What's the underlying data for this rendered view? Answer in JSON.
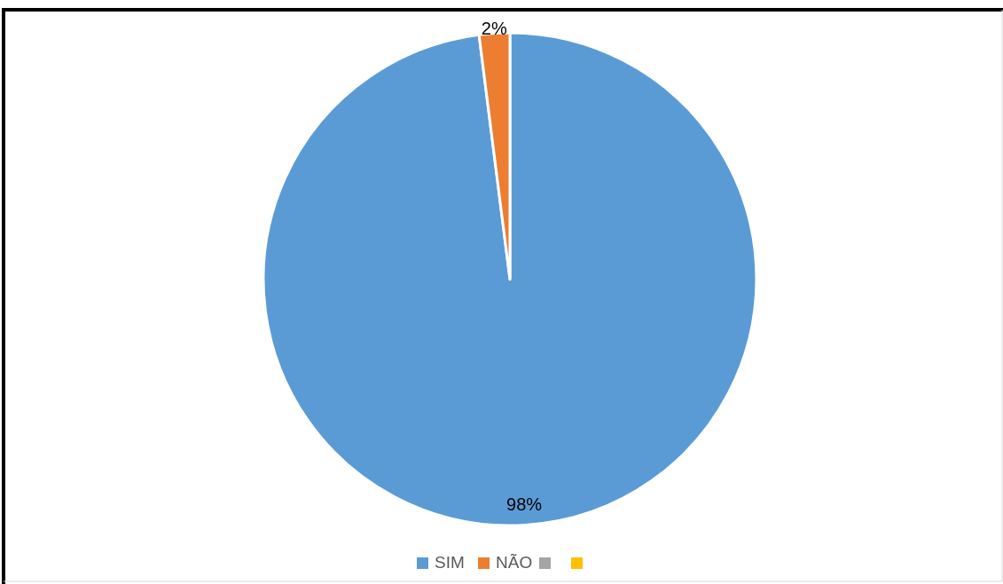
{
  "chart_data": {
    "type": "pie",
    "categories": [
      "SIM",
      "NÃO",
      null,
      null
    ],
    "values": [
      98,
      2,
      0,
      0
    ],
    "colors": [
      "#5b9bd5",
      "#ed7d31",
      "#a5a5a5",
      "#ffc000"
    ],
    "value_labels": [
      "98%",
      "2%",
      null,
      null
    ],
    "legend": "bottom"
  }
}
